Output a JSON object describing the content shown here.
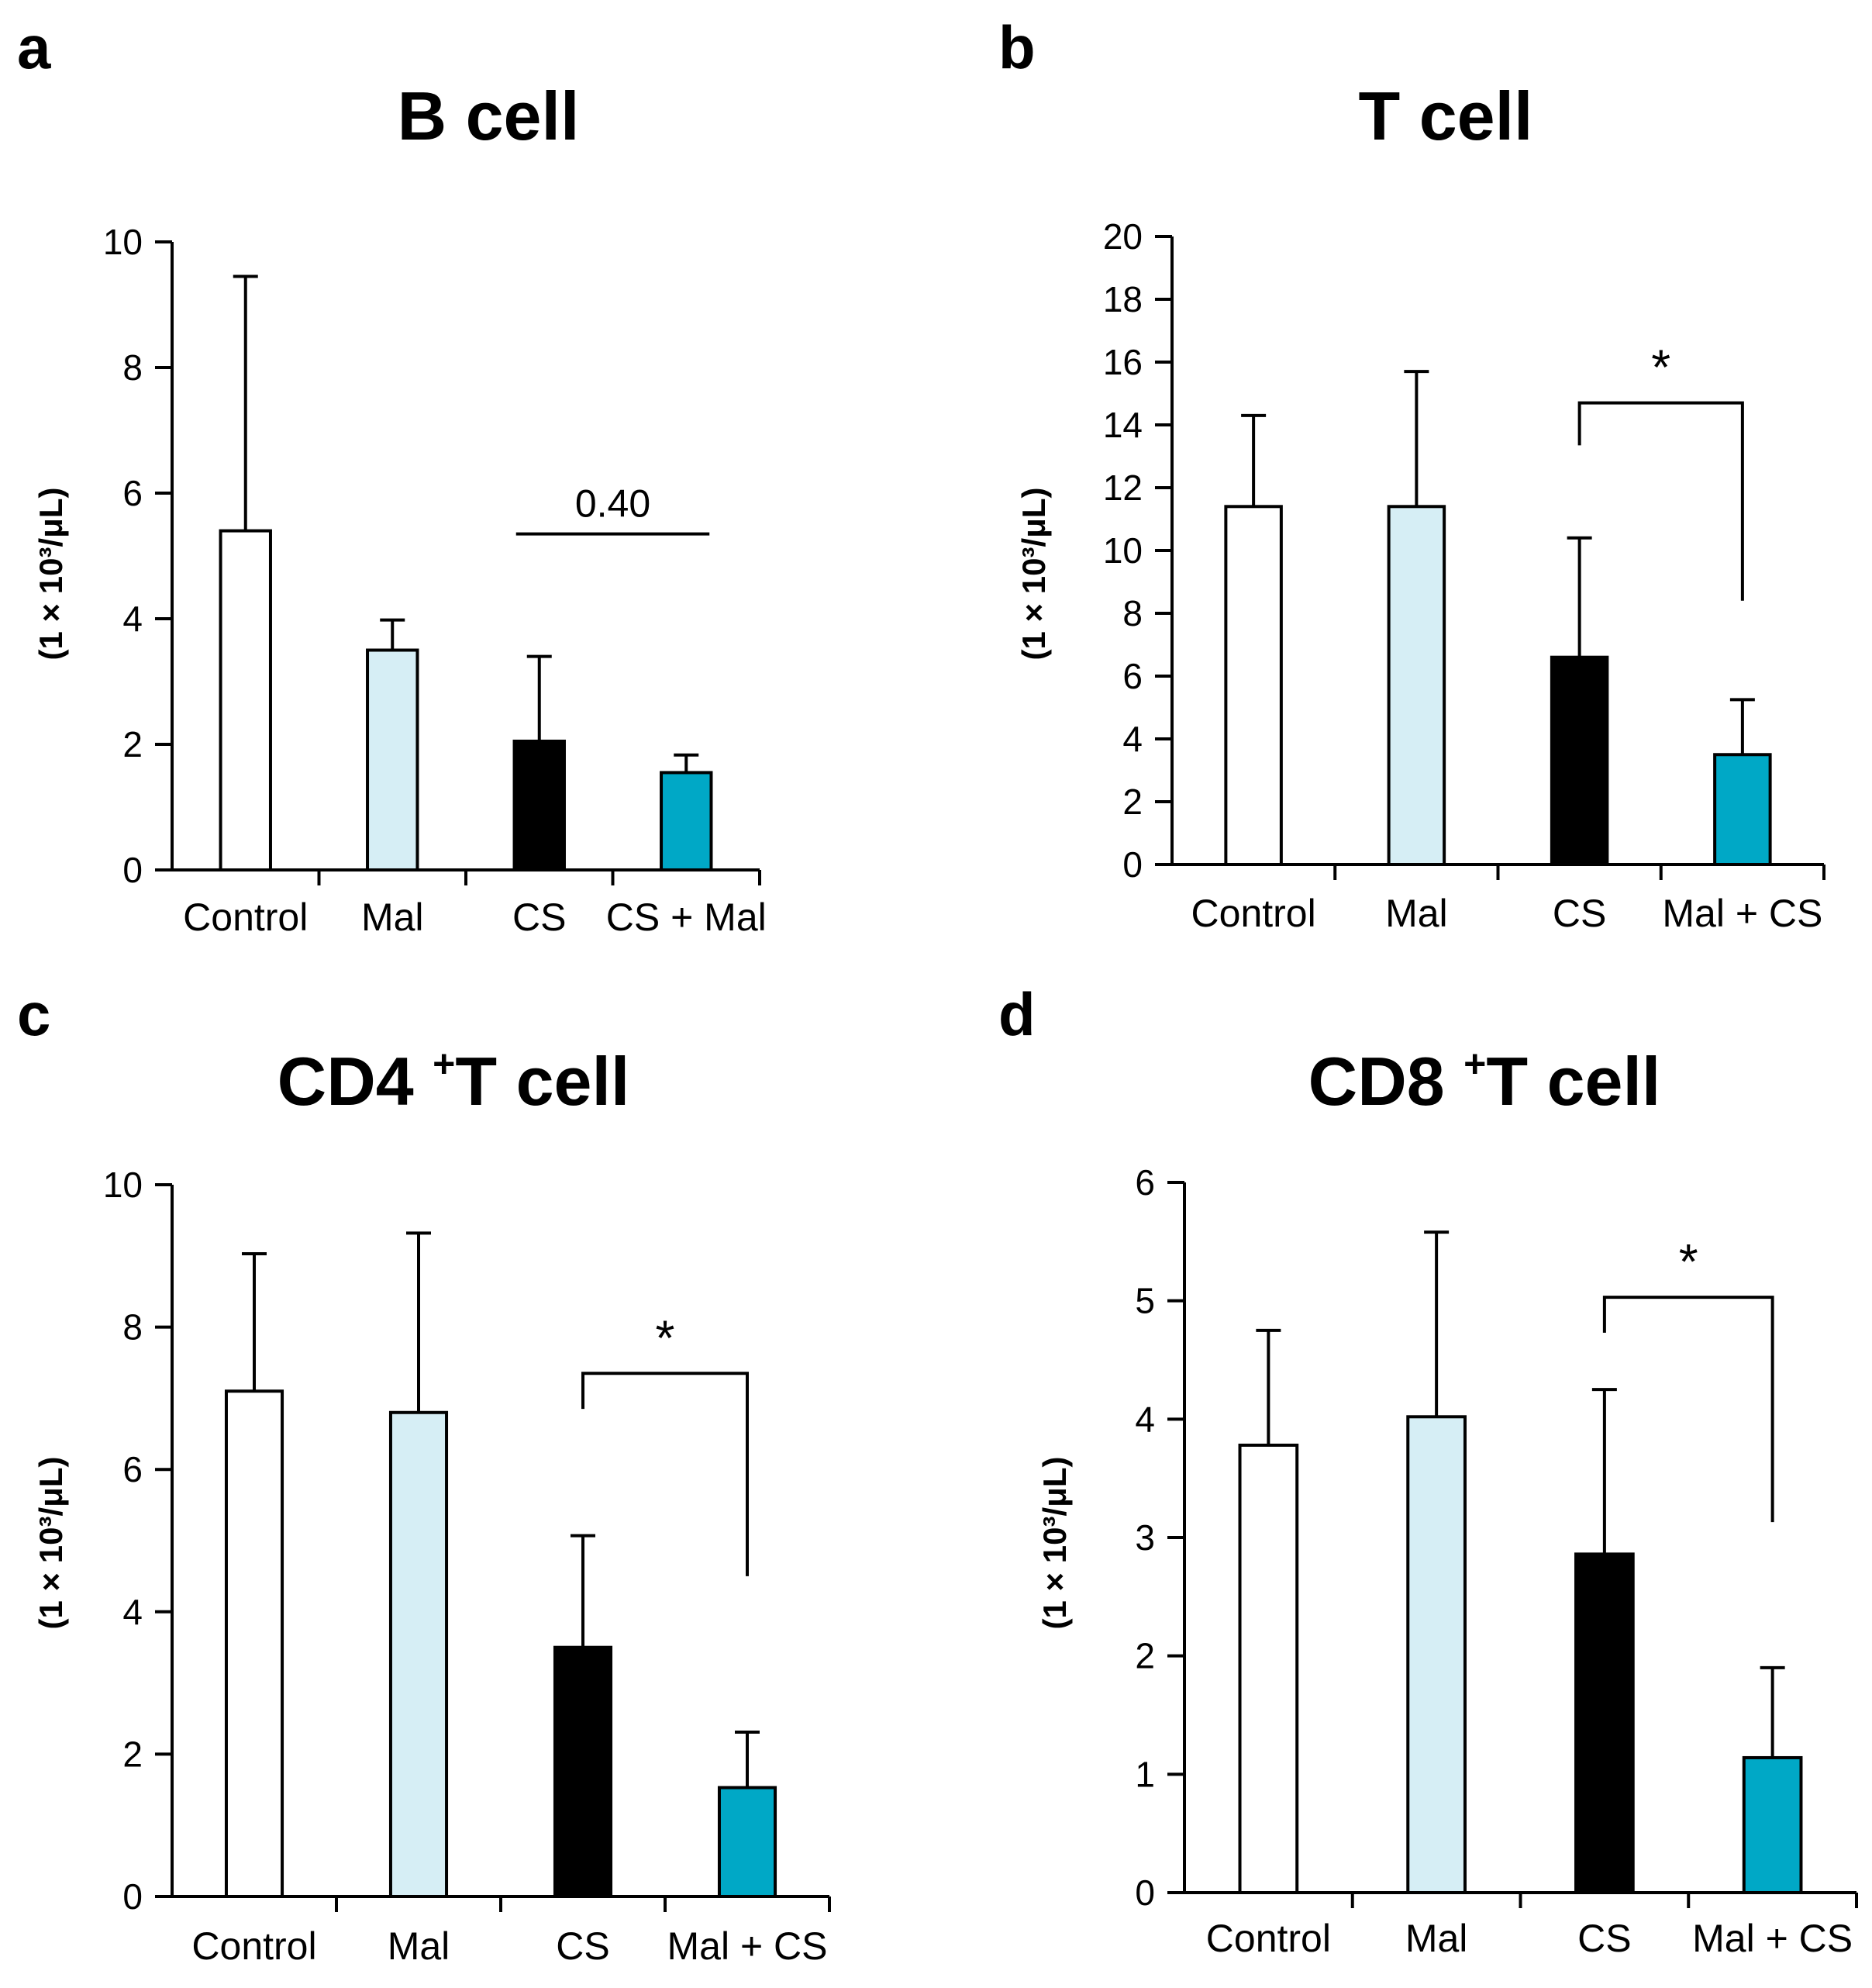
{
  "figure": {
    "colors": {
      "Control": "#ffffff",
      "Mal": "#d6eef5",
      "CS": "#000000",
      "combo": "#00a8c6",
      "stroke": "#000000"
    }
  },
  "chart_data": [
    {
      "panel": "a",
      "type": "bar",
      "title": "B cell",
      "ylabel": "(1 × 10³/μL)",
      "ylim": [
        0,
        10
      ],
      "yticks": [
        0,
        2,
        4,
        6,
        8,
        10
      ],
      "categories": [
        "Control",
        "Mal",
        "CS",
        "CS + Mal"
      ],
      "values": [
        5.4,
        3.5,
        2.05,
        1.55
      ],
      "errors": [
        4.05,
        0.48,
        1.35,
        0.28
      ],
      "bar_colors": [
        "#ffffff",
        "#d6eef5",
        "#000000",
        "#00a8c6"
      ],
      "annotation": {
        "type": "line",
        "from": 2,
        "to": 3,
        "y": 5.35,
        "label": "0.40"
      }
    },
    {
      "panel": "b",
      "type": "bar",
      "title": "T cell",
      "ylabel": "(1 × 10³/μL)",
      "ylim": [
        0,
        20
      ],
      "yticks": [
        0,
        2,
        4,
        6,
        8,
        10,
        12,
        14,
        16,
        18,
        20
      ],
      "categories": [
        "Control",
        "Mal",
        "CS",
        "Mal + CS"
      ],
      "values": [
        11.4,
        11.4,
        6.6,
        3.5
      ],
      "errors": [
        2.9,
        4.3,
        3.8,
        1.75
      ],
      "bar_colors": [
        "#ffffff",
        "#d6eef5",
        "#000000",
        "#00a8c6"
      ],
      "annotation": {
        "type": "bracket",
        "from": 2,
        "to": 3,
        "y": 14.7,
        "left_drop": 1.35,
        "right_drop": 6.3,
        "label": "*"
      }
    },
    {
      "panel": "c",
      "type": "bar",
      "title": "CD4⁺T cell",
      "ylabel": "(1 × 10³/μL)",
      "ylim": [
        0,
        10
      ],
      "yticks": [
        0,
        2,
        4,
        6,
        8,
        10
      ],
      "categories": [
        "Control",
        "Mal",
        "CS",
        "Mal + CS"
      ],
      "values": [
        7.1,
        6.8,
        3.5,
        1.53
      ],
      "errors": [
        1.93,
        2.52,
        1.57,
        0.78
      ],
      "bar_colors": [
        "#ffffff",
        "#d6eef5",
        "#000000",
        "#00a8c6"
      ],
      "annotation": {
        "type": "bracket",
        "from": 2,
        "to": 3,
        "y": 7.35,
        "left_drop": 0.5,
        "right_drop": 2.85,
        "label": "*"
      }
    },
    {
      "panel": "d",
      "type": "bar",
      "title": "CD8⁺T cell",
      "ylabel": "(1 × 10³/μL)",
      "ylim": [
        0,
        6
      ],
      "yticks": [
        0,
        1,
        2,
        3,
        4,
        5,
        6
      ],
      "categories": [
        "Control",
        "Mal",
        "CS",
        "Mal + CS"
      ],
      "values": [
        3.78,
        4.02,
        2.86,
        1.14
      ],
      "errors": [
        0.97,
        1.56,
        1.39,
        0.76
      ],
      "bar_colors": [
        "#ffffff",
        "#d6eef5",
        "#000000",
        "#00a8c6"
      ],
      "annotation": {
        "type": "bracket",
        "from": 2,
        "to": 3,
        "y": 5.03,
        "left_drop": 0.3,
        "right_drop": 1.9,
        "label": "*"
      }
    }
  ]
}
